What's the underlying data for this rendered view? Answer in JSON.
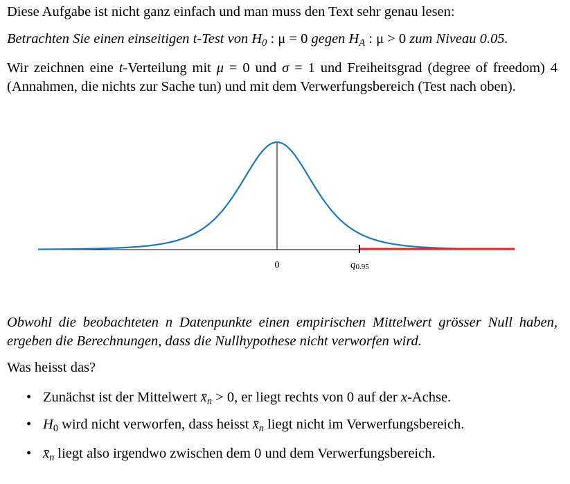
{
  "intro": "Diese Aufgabe ist nicht ganz einfach und man muss den Text sehr genau lesen:",
  "task": [
    "Betrachten Sie einen einseitigen t-Test von ",
    "H",
    "0",
    " : μ = 0 ",
    "gegen ",
    "H",
    "A",
    " : μ > 0 ",
    "zum Niveau 0.05."
  ],
  "setup": [
    "Wir zeichnen eine ",
    "t",
    "-Verteilung mit ",
    "μ",
    " = 0 und ",
    "σ",
    " = 1 und Freiheitsgrad (degree of freedom) 4 (Annahmen, die nichts zur Sache tun) und mit dem Verwerfungsbereich (Test nach oben)."
  ],
  "figure": {
    "center_label": "0",
    "quantile_label": [
      "q",
      "0.95"
    ]
  },
  "observation": "Obwohl die beobachteten n Datenpunkte einen empirischen Mittelwert grösser Null haben, ergeben die Berechnungen, dass die Nullhypothese nicht verworfen wird.",
  "question": "Was heisst das?",
  "bullets": [
    [
      "Zunächst ist der Mittelwert ",
      "x̄",
      "n",
      " > 0, er liegt rechts von 0 auf der ",
      "x",
      "-Achse."
    ],
    [
      "H",
      "0",
      " wird nicht verworfen, dass heisst ",
      "x̄",
      "n",
      " liegt nicht im Verwerfungsbereich."
    ],
    [
      "x̄",
      "n",
      " liegt also irgendwo zwischen dem 0 und dem Verwerfungsbereich."
    ]
  ]
}
